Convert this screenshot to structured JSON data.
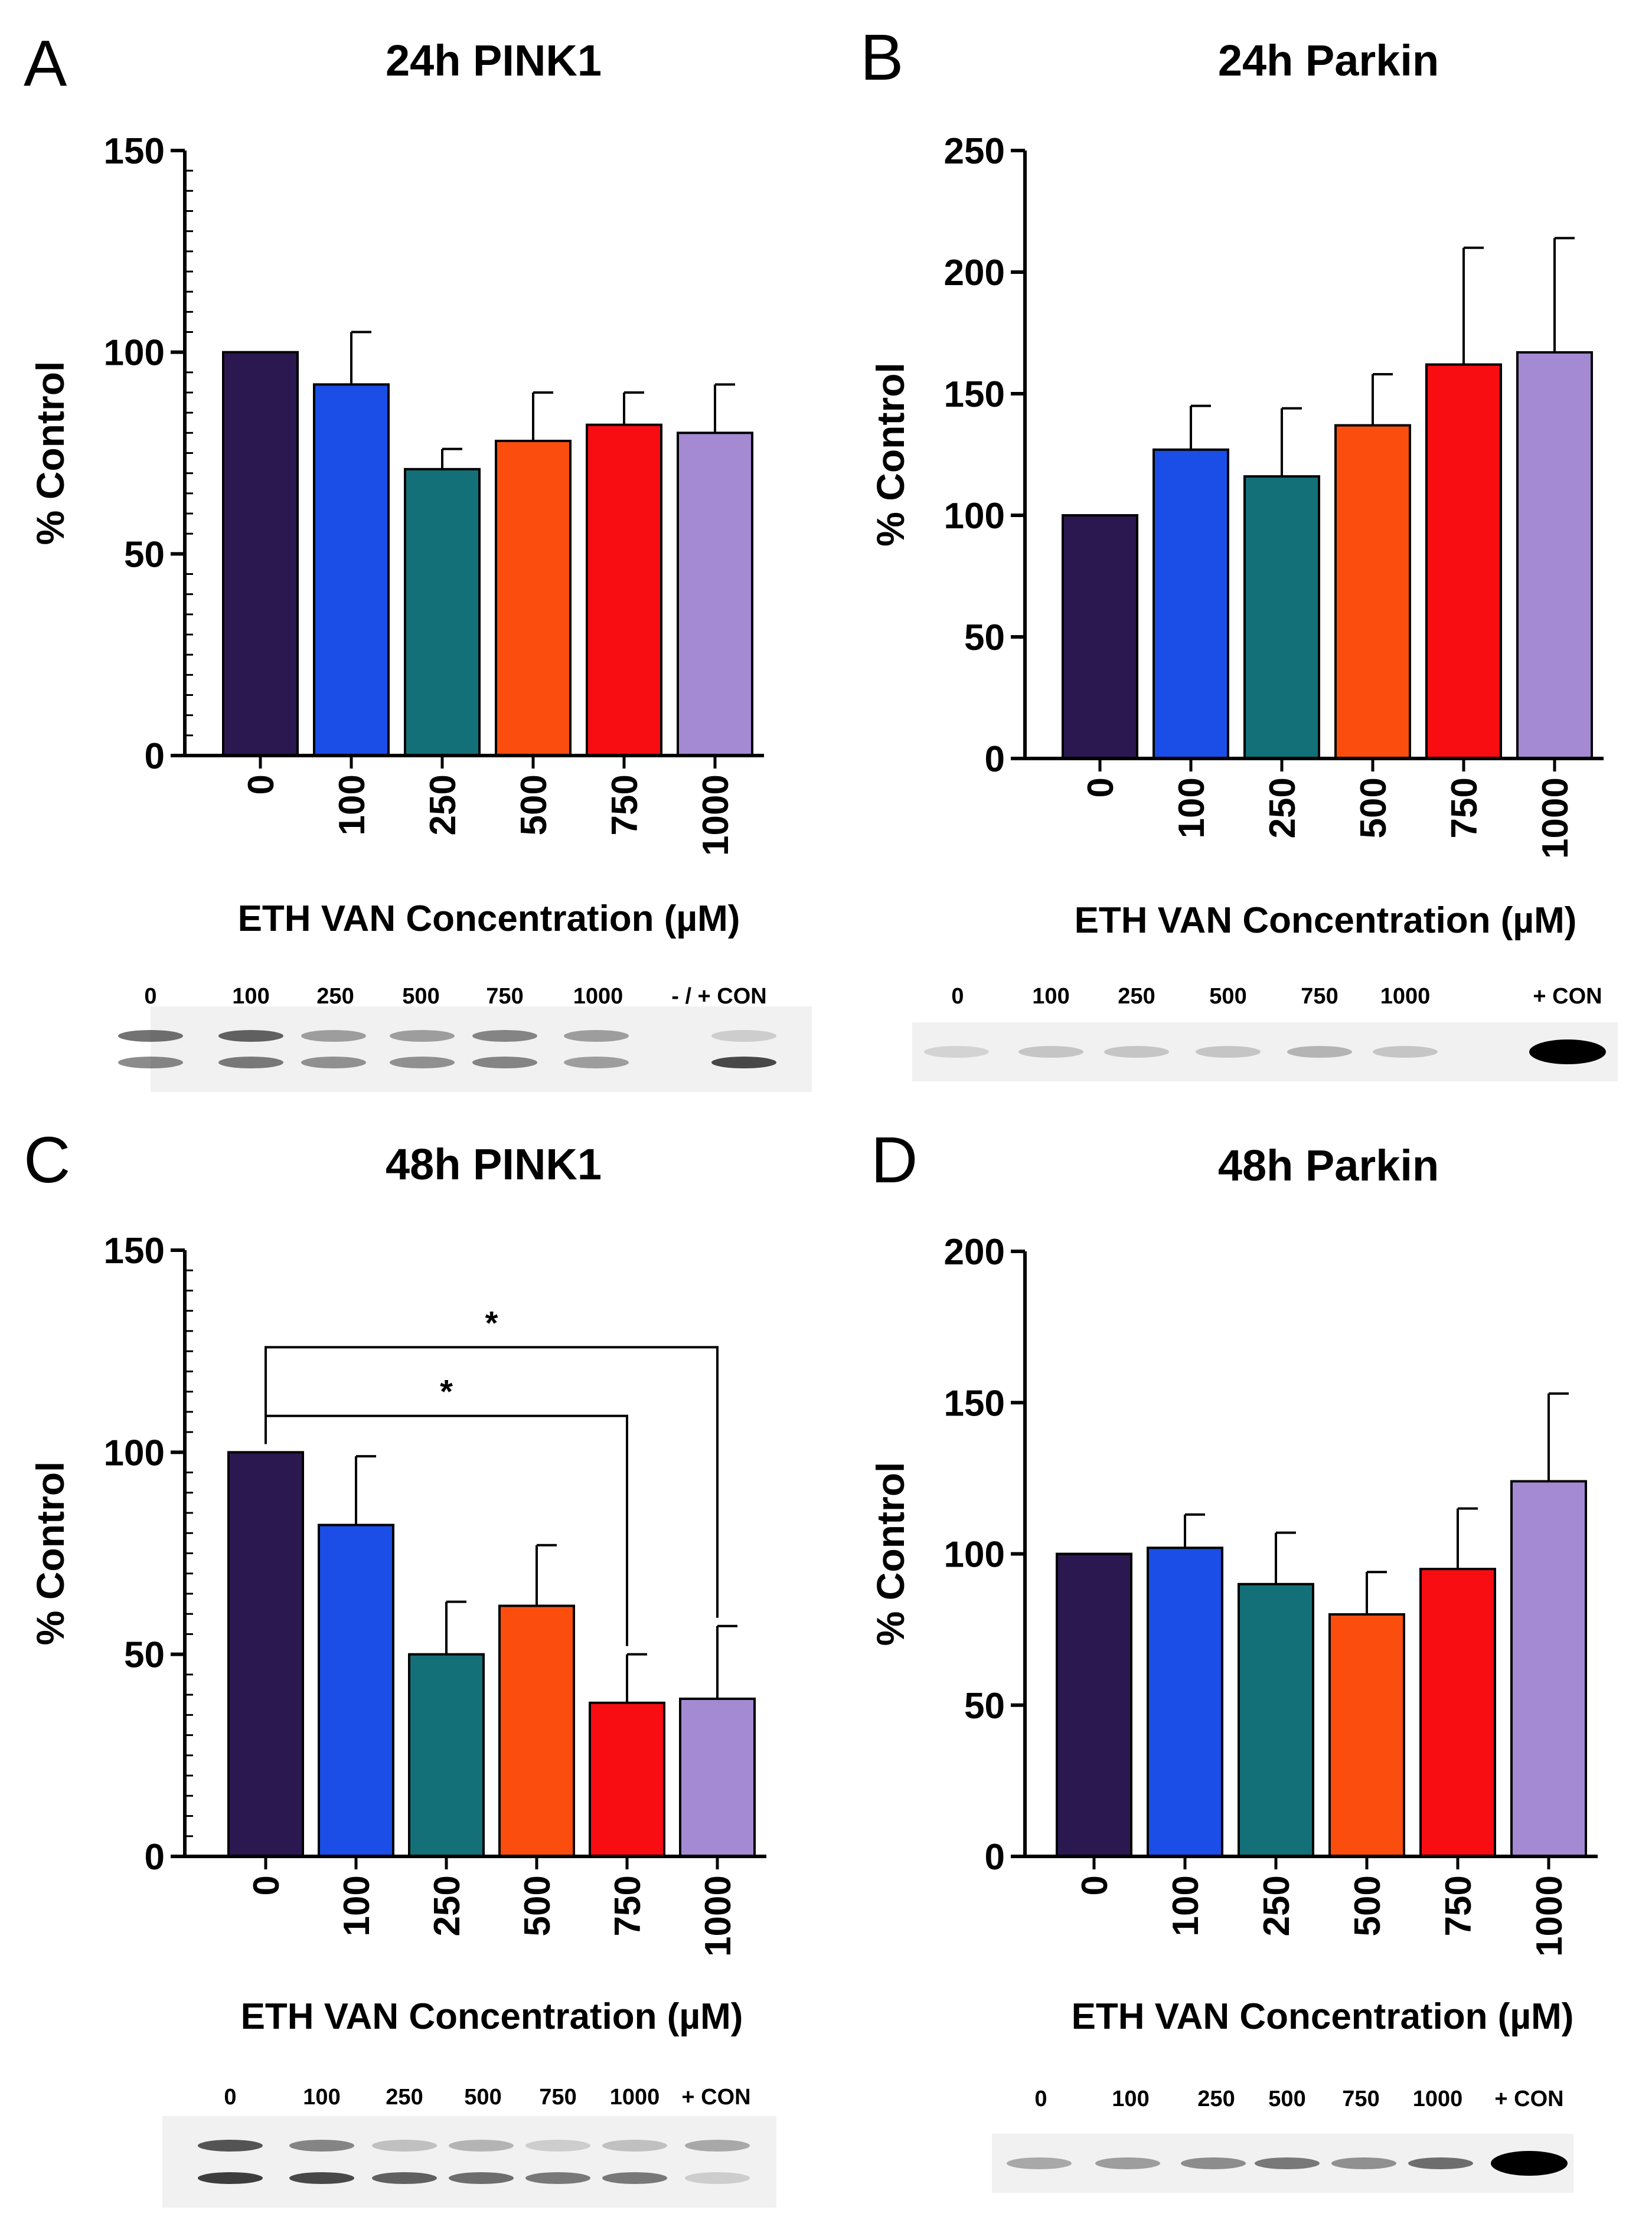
{
  "colors": {
    "bars": [
      "#2b1850",
      "#1a4ee6",
      "#137078",
      "#fb4e0e",
      "#f80d12",
      "#a48ad2"
    ],
    "axis": "#000000"
  },
  "chart_data": [
    {
      "id": "A",
      "panel_letter": "A",
      "type": "bar",
      "title": "24h PINK1",
      "xlabel": "ETH VAN Concentration (µM)",
      "ylabel": "% Control",
      "categories": [
        "0",
        "100",
        "250",
        "500",
        "750",
        "1000"
      ],
      "values": [
        100,
        92,
        71,
        78,
        82,
        80
      ],
      "errors": [
        0,
        13,
        5,
        12,
        8,
        12
      ],
      "ylim": [
        0,
        150
      ],
      "yticks": [
        "0",
        "50",
        "100",
        "150"
      ],
      "minor_ticks": true,
      "significance": [],
      "blot": {
        "lanes": [
          "0",
          "100",
          "250",
          "500",
          "750",
          "1000",
          "- / + CON"
        ],
        "bands": 2
      }
    },
    {
      "id": "B",
      "panel_letter": "B",
      "type": "bar",
      "title": "24h Parkin",
      "xlabel": "ETH VAN Concentration (µM)",
      "ylabel": "% Control",
      "categories": [
        "0",
        "100",
        "250",
        "500",
        "750",
        "1000"
      ],
      "values": [
        100,
        127,
        116,
        137,
        162,
        167
      ],
      "errors": [
        0,
        18,
        28,
        21,
        48,
        47
      ],
      "ylim": [
        0,
        250
      ],
      "yticks": [
        "0",
        "50",
        "100",
        "150",
        "200",
        "250"
      ],
      "minor_ticks": false,
      "significance": [],
      "blot": {
        "lanes": [
          "0",
          "100",
          "250",
          "500",
          "750",
          "1000",
          "+ CON"
        ],
        "bands": 1
      }
    },
    {
      "id": "C",
      "panel_letter": "C",
      "type": "bar",
      "title": "48h PINK1",
      "xlabel": "ETH VAN Concentration (µM)",
      "ylabel": "% Control",
      "categories": [
        "0",
        "100",
        "250",
        "500",
        "750",
        "1000"
      ],
      "values": [
        100,
        82,
        50,
        62,
        38,
        39
      ],
      "errors": [
        0,
        17,
        13,
        15,
        12,
        18
      ],
      "ylim": [
        0,
        150
      ],
      "yticks": [
        "0",
        "50",
        "100",
        "150"
      ],
      "minor_ticks": true,
      "significance": [
        {
          "from": "0",
          "to": "1000",
          "label": "*",
          "y": 126
        },
        {
          "from": "0",
          "to": "750",
          "label": "*",
          "y": 109
        }
      ],
      "blot": {
        "lanes": [
          "0",
          "100",
          "250",
          "500",
          "750",
          "1000",
          "+ CON"
        ],
        "bands": 2
      }
    },
    {
      "id": "D",
      "panel_letter": "D",
      "type": "bar",
      "title": "48h Parkin",
      "xlabel": "ETH VAN Concentration (µM)",
      "ylabel": "% Control",
      "categories": [
        "0",
        "100",
        "250",
        "500",
        "750",
        "1000"
      ],
      "values": [
        100,
        102,
        90,
        80,
        95,
        124
      ],
      "errors": [
        0,
        11,
        17,
        14,
        20,
        29
      ],
      "ylim": [
        0,
        200
      ],
      "yticks": [
        "0",
        "50",
        "100",
        "150",
        "200"
      ],
      "minor_ticks": false,
      "significance": [],
      "blot": {
        "lanes": [
          "0",
          "100",
          "250",
          "500",
          "750",
          "1000",
          "+ CON"
        ],
        "bands": 1
      }
    }
  ]
}
